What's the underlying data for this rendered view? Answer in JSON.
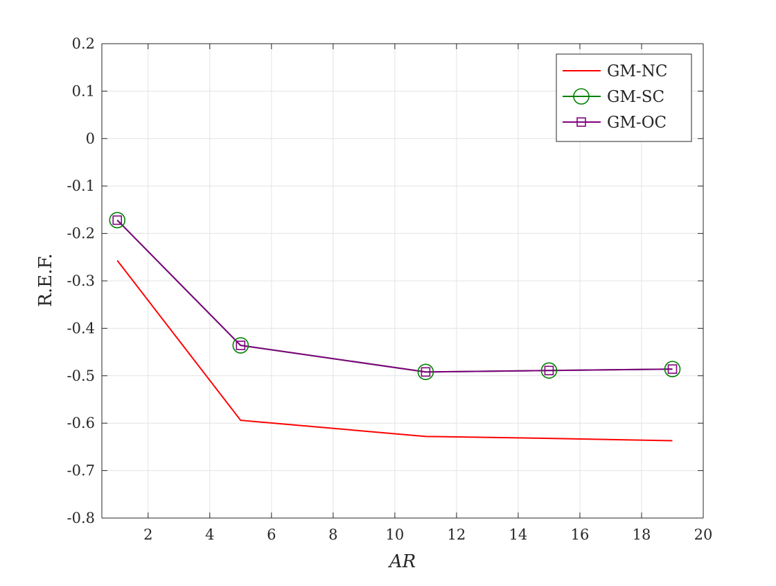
{
  "chart_data": {
    "type": "line",
    "title": "",
    "xlabel": "AR",
    "ylabel": "R.E.F.",
    "xlim": [
      0.5,
      20
    ],
    "ylim": [
      -0.8,
      0.2
    ],
    "xticks": [
      2,
      4,
      6,
      8,
      10,
      12,
      14,
      16,
      18,
      20
    ],
    "yticks": [
      0.2,
      0.1,
      0,
      -0.1,
      -0.2,
      -0.3,
      -0.4,
      -0.5,
      -0.6,
      -0.7,
      -0.8
    ],
    "xtick_labels": [
      "2",
      "4",
      "6",
      "8",
      "10",
      "12",
      "14",
      "16",
      "18",
      "20"
    ],
    "ytick_labels": [
      "0.2",
      "0.1",
      "0",
      "-0.1",
      "-0.2",
      "-0.3",
      "-0.4",
      "-0.5",
      "-0.6",
      "-0.7",
      "-0.8"
    ],
    "grid": true,
    "legend_position": "top-right",
    "series": [
      {
        "name": "GM-NC",
        "color": "#ff0000",
        "marker": "none",
        "x": [
          1,
          5,
          11,
          15,
          19
        ],
        "y": [
          -0.257,
          -0.594,
          -0.628,
          -0.632,
          -0.637
        ]
      },
      {
        "name": "GM-SC",
        "color": "#008000",
        "marker": "circle",
        "x": [
          1,
          5,
          11,
          15,
          19
        ],
        "y": [
          -0.172,
          -0.436,
          -0.492,
          -0.489,
          -0.486
        ]
      },
      {
        "name": "GM-OC",
        "color": "#800080",
        "marker": "square",
        "x": [
          1,
          5,
          11,
          15,
          19
        ],
        "y": [
          -0.172,
          -0.436,
          -0.492,
          -0.489,
          -0.486
        ]
      }
    ]
  }
}
